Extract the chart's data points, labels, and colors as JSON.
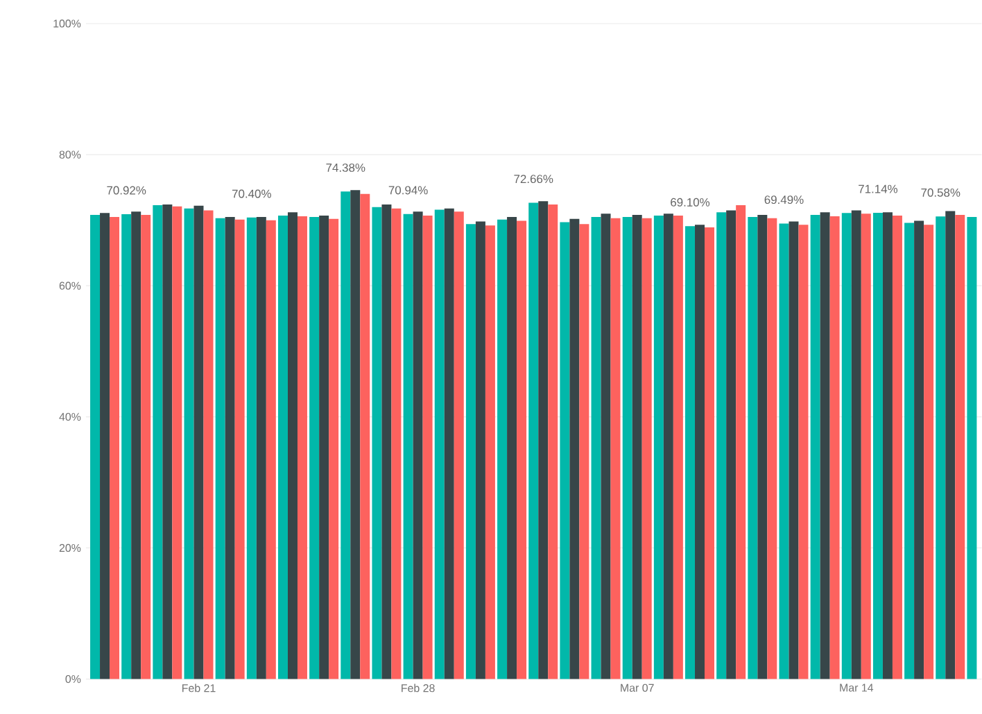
{
  "chart_data": {
    "type": "bar",
    "categories": [
      null,
      null,
      null,
      "Feb 21",
      null,
      null,
      null,
      null,
      null,
      null,
      "Feb 28",
      null,
      null,
      null,
      null,
      null,
      null,
      "Mar 07",
      null,
      null,
      null,
      null,
      null,
      null,
      "Mar 14",
      null,
      null,
      null,
      null
    ],
    "series": [
      {
        "color": "#01b8aa",
        "values": [
          70.8,
          70.92,
          72.3,
          71.8,
          70.3,
          70.4,
          70.7,
          70.5,
          74.38,
          72.0,
          70.94,
          71.6,
          69.4,
          70.1,
          72.66,
          69.7,
          70.5,
          70.5,
          70.7,
          69.1,
          71.2,
          70.5,
          69.49,
          70.8,
          71.1,
          71.14,
          69.6,
          70.58,
          70.5
        ],
        "value_labels": [
          null,
          "70.92%",
          null,
          null,
          null,
          "70.40%",
          null,
          null,
          "74.38%",
          null,
          "70.94%",
          null,
          null,
          null,
          "72.66%",
          null,
          null,
          null,
          null,
          "69.10%",
          null,
          null,
          "69.49%",
          null,
          null,
          "71.14%",
          null,
          "70.58%",
          null
        ]
      },
      {
        "color": "#374649",
        "values": [
          71.1,
          71.3,
          72.4,
          72.2,
          70.5,
          70.5,
          71.2,
          70.7,
          74.6,
          72.4,
          71.3,
          71.8,
          69.8,
          70.5,
          72.9,
          70.2,
          71.0,
          70.8,
          71.0,
          69.3,
          71.5,
          70.8,
          69.8,
          71.2,
          71.5,
          71.2,
          69.9,
          71.4,
          null
        ]
      },
      {
        "color": "#fd625e",
        "values": [
          70.5,
          70.8,
          72.1,
          71.5,
          70.1,
          70.0,
          70.6,
          70.2,
          74.0,
          71.8,
          70.7,
          71.3,
          69.2,
          69.9,
          72.4,
          69.4,
          70.3,
          70.3,
          70.7,
          68.9,
          72.3,
          70.3,
          69.3,
          70.6,
          71.0,
          70.7,
          69.3,
          70.8,
          null
        ]
      }
    ],
    "ylim": [
      0,
      100
    ],
    "yticks": [
      {
        "value": 0,
        "label": "0%"
      },
      {
        "value": 20,
        "label": "20%"
      },
      {
        "value": 40,
        "label": "40%"
      },
      {
        "value": 60,
        "label": "60%"
      },
      {
        "value": 80,
        "label": "80%"
      },
      {
        "value": 100,
        "label": "100%"
      }
    ],
    "grid": "y"
  }
}
